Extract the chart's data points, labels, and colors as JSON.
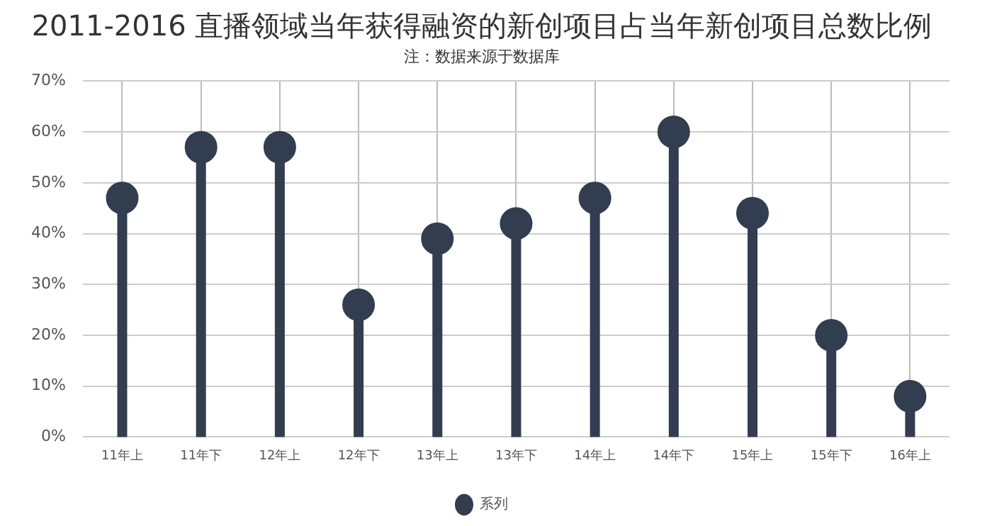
{
  "chart_data": {
    "type": "lollipop",
    "title": "2011-2016 直播领域当年获得融资的新创项目占当年新创项目总数比例",
    "subtitle": "注：数据来源于数据库",
    "categories": [
      "11年上",
      "11年下",
      "12年上",
      "12年下",
      "13年上",
      "13年下",
      "14年上",
      "14年下",
      "15年上",
      "15年下",
      "16年上"
    ],
    "series": [
      {
        "name": "系列",
        "color": "#333d50",
        "values": [
          47,
          57,
          57,
          26,
          39,
          42,
          47,
          60,
          44,
          20,
          8
        ]
      }
    ],
    "ylim": [
      0,
      70
    ],
    "yticks": [
      {
        "value": 0,
        "label": "0%"
      },
      {
        "value": 10,
        "label": "10%"
      },
      {
        "value": 20,
        "label": "20%"
      },
      {
        "value": 30,
        "label": "30%"
      },
      {
        "value": 40,
        "label": "40%"
      },
      {
        "value": 50,
        "label": "50%"
      },
      {
        "value": 60,
        "label": "60%"
      },
      {
        "value": 70,
        "label": "70%"
      }
    ],
    "grid": true,
    "legend": "bottom",
    "marker": "circle"
  }
}
